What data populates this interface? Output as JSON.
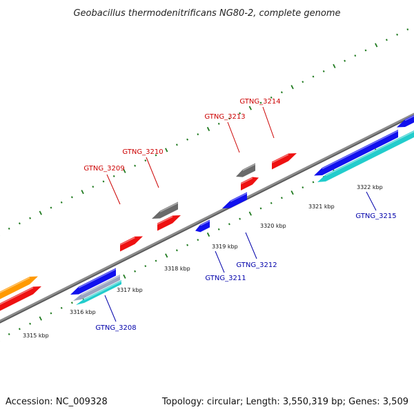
{
  "title": "Geobacillus thermodenitrificans NG80-2, complete genome",
  "accession": "Accession: NC_009328",
  "topology": "Topology: circular; Length: 3,550,319 bp; Genes: 3,509",
  "colors": {
    "backbone": "#8c8c8c",
    "tick": "#1f7a1f",
    "gene_red": "#ee1111",
    "gene_blue": "#1111ee",
    "gene_gray": "#6a6a6a",
    "gene_orange": "#ff9900",
    "gene_cyan": "#22cccc",
    "label_red": "#cc0000",
    "label_blue": "#0000aa"
  },
  "kbp_labels": [
    "3315 kbp",
    "3316 kbp",
    "3317 kbp",
    "3318 kbp",
    "3319 kbp",
    "3320 kbp",
    "3321 kbp",
    "3322 kbp"
  ],
  "genes": [
    {
      "name": "GTNG_3208",
      "strand": "reverse"
    },
    {
      "name": "GTNG_3209",
      "strand": "forward"
    },
    {
      "name": "GTNG_3210",
      "strand": "forward"
    },
    {
      "name": "GTNG_3211",
      "strand": "reverse"
    },
    {
      "name": "GTNG_3212",
      "strand": "reverse"
    },
    {
      "name": "GTNG_3213",
      "strand": "forward"
    },
    {
      "name": "GTNG_3214",
      "strand": "forward"
    },
    {
      "name": "GTNG_3215",
      "strand": "reverse"
    }
  ]
}
